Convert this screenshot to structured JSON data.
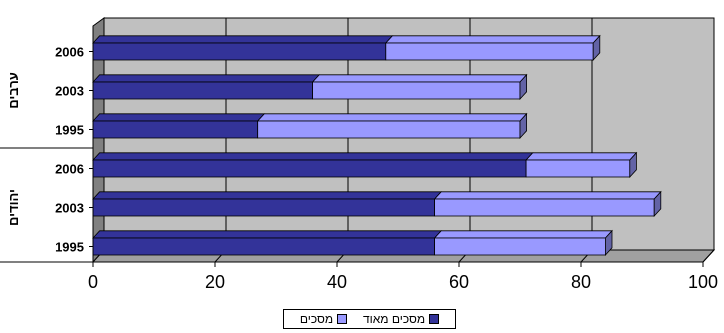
{
  "chart_data": {
    "type": "bar",
    "orientation": "horizontal",
    "stacked": true,
    "three_d": true,
    "categories": [
      "1995",
      "2003",
      "2006",
      "1995",
      "2003",
      "2006"
    ],
    "groups": [
      {
        "label": "יהודים",
        "categories": [
          "1995",
          "2003",
          "2006"
        ]
      },
      {
        "label": "ערבים",
        "categories": [
          "1995",
          "2003",
          "2006"
        ]
      }
    ],
    "series": [
      {
        "name": "מסכים מאוד",
        "color": "#333399",
        "values": [
          56,
          56,
          71,
          27,
          36,
          48
        ]
      },
      {
        "name": "מסכים",
        "color": "#9999ff",
        "values": [
          28,
          36,
          17,
          43,
          34,
          34
        ]
      }
    ],
    "xlim": [
      0,
      100
    ],
    "xticks": [
      "0",
      "20",
      "40",
      "60",
      "80",
      "100"
    ],
    "grid": true,
    "legend_position": "bottom"
  }
}
